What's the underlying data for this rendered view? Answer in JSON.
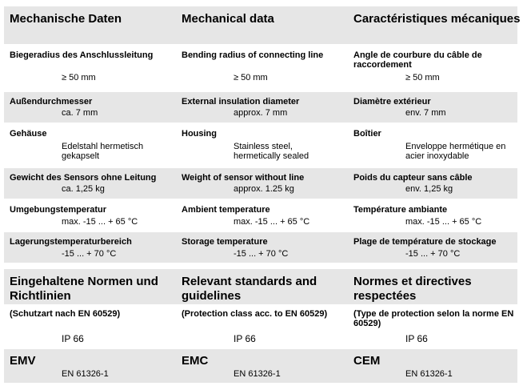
{
  "mechanical": {
    "headings": [
      "Mechanische Daten",
      "Mechanical data",
      "Caractéristiques mécaniques"
    ],
    "rows": [
      {
        "labels": [
          "Biegeradius des Anschlussleitung",
          "Bending radius of connecting line",
          "Angle de courbure du câble de raccordement"
        ],
        "values": [
          "≥ 50 mm",
          "≥ 50 mm",
          "≥ 50 mm"
        ]
      },
      {
        "labels": [
          "Außendurchmesser",
          "External insulation diameter",
          "Diamètre extérieur"
        ],
        "values": [
          "ca. 7 mm",
          "approx. 7 mm",
          "env. 7 mm"
        ]
      },
      {
        "labels": [
          "Gehäuse",
          "Housing",
          "Boîtier"
        ],
        "values": [
          "Edelstahl hermetisch gekapselt",
          "Stainless steel, hermetically sealed",
          "Enveloppe hermétique en acier inoxydable"
        ]
      },
      {
        "labels": [
          "Gewicht des Sensors ohne Leitung",
          "Weight of sensor without line",
          "Poids du capteur sans câble"
        ],
        "values": [
          "ca. 1,25 kg",
          "approx. 1.25 kg",
          "env. 1,25 kg"
        ]
      },
      {
        "labels": [
          "Umgebungstemperatur",
          "Ambient temperature",
          "Température ambiante"
        ],
        "values": [
          "max. -15 ... + 65 °C",
          "max. -15 ... + 65 °C",
          "max. -15 ... + 65 °C"
        ]
      },
      {
        "labels": [
          "Lagerungstemperaturbereich",
          "Storage temperature",
          "Plage de température de stockage"
        ],
        "values": [
          "-15 ... + 70 °C",
          "-15 ... + 70 °C",
          "-15 ... + 70 °C"
        ]
      }
    ]
  },
  "standards": {
    "headings": [
      "Eingehaltene Normen und Richtlinien",
      "Relevant standards and guidelines",
      "Normes et directives respectées"
    ],
    "rows": [
      {
        "labels": [
          "(Schutzart nach EN 60529)",
          "(Protection class acc. to EN 60529)",
          "(Type de protection selon la norme EN 60529)"
        ],
        "values": [
          "IP 66",
          "IP 66",
          "IP 66"
        ]
      },
      {
        "labels": [
          "EMV",
          "EMC",
          "CEM"
        ],
        "values": [
          "EN 61326-1",
          "EN 61326-1",
          "EN 61326-1"
        ]
      }
    ]
  }
}
